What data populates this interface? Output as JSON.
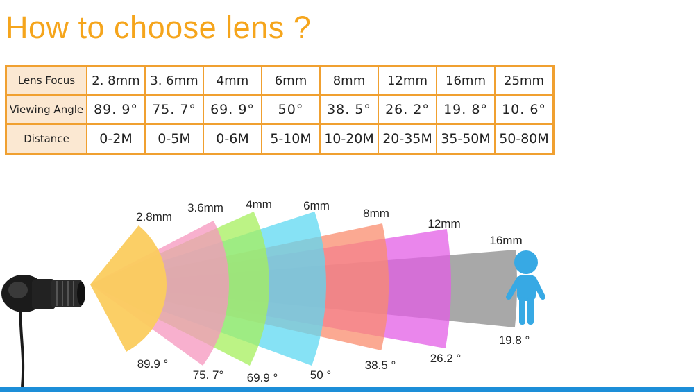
{
  "title": "How to choose lens ?",
  "table": {
    "rows": [
      {
        "header": "Lens Focus",
        "values": [
          "2. 8mm",
          "3. 6mm",
          "4mm",
          "6mm",
          "8mm",
          "12mm",
          "16mm",
          "25mm"
        ]
      },
      {
        "header": "Viewing Angle",
        "values": [
          "89. 9°",
          "75. 7°",
          "69. 9°",
          "50°",
          "38. 5°",
          "26. 2°",
          "19. 8°",
          "10. 6°"
        ]
      },
      {
        "header": "Distance",
        "values": [
          "0-2M",
          "0-5M",
          "0-6M",
          "5-10M",
          "10-20M",
          "20-35M",
          "35-50M",
          "50-80M"
        ]
      }
    ]
  },
  "diagram": {
    "fans": [
      {
        "focal": "2.8mm",
        "angle": "89.9 °",
        "color": "#fbcc5e"
      },
      {
        "focal": "3.6mm",
        "angle": "75. 7°",
        "color": "#f596be"
      },
      {
        "focal": "4mm",
        "angle": "69.9 °",
        "color": "#a6ef5c"
      },
      {
        "focal": "6mm",
        "angle": "50 °",
        "color": "#5ed8f2"
      },
      {
        "focal": "8mm",
        "angle": "38.5 °",
        "color": "#f98c6e"
      },
      {
        "focal": "12mm",
        "angle": "26.2 °",
        "color": "#e35de6"
      },
      {
        "focal": "16mm",
        "angle": "19.8 °",
        "color": "#8b8b8b"
      }
    ],
    "person_color": "#37a9e4",
    "camera_color": "#1b1b1b"
  },
  "accent_colors": {
    "title": "#f5a51c",
    "table_border": "#f0a030",
    "bottom_bar": "#1d8ed8"
  }
}
